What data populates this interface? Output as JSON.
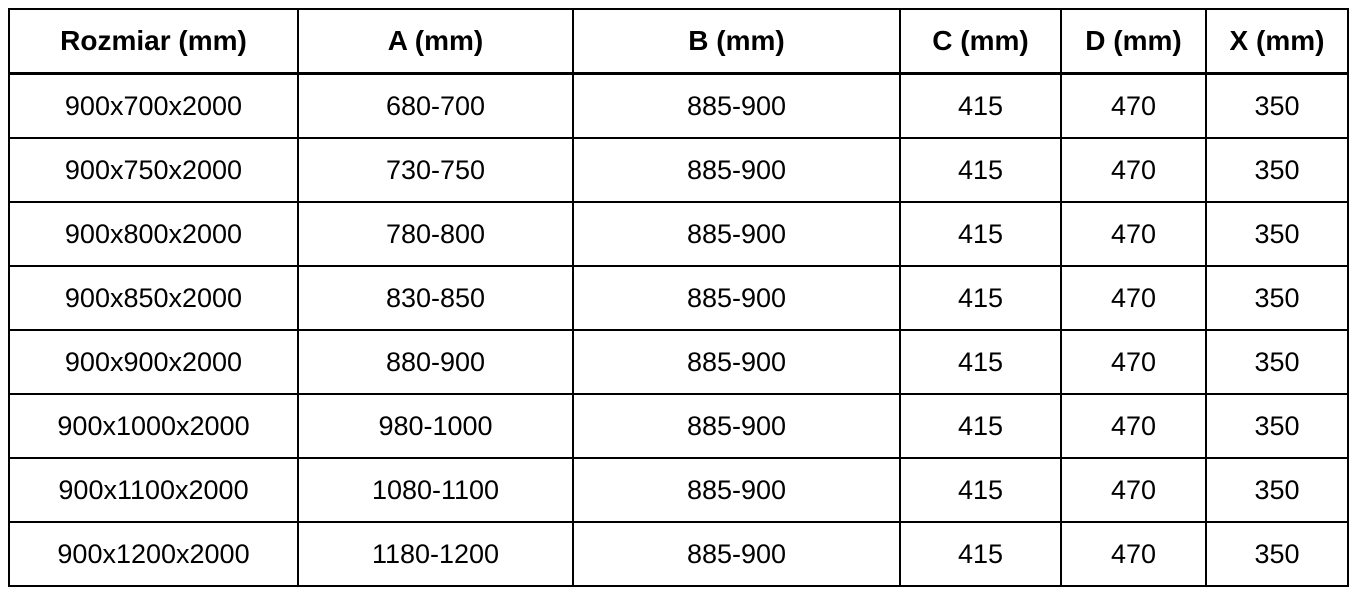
{
  "page": {
    "background": "#ffffff",
    "border_color": "#000000",
    "text_color": "#000000"
  },
  "table": {
    "columns": [
      "Rozmiar (mm)",
      "A (mm)",
      "B (mm)",
      "C (mm)",
      "D (mm)",
      "X (mm)"
    ],
    "rows": [
      [
        "900x700x2000",
        "680-700",
        "885-900",
        "415",
        "470",
        "350"
      ],
      [
        "900x750x2000",
        "730-750",
        "885-900",
        "415",
        "470",
        "350"
      ],
      [
        "900x800x2000",
        "780-800",
        "885-900",
        "415",
        "470",
        "350"
      ],
      [
        "900x850x2000",
        "830-850",
        "885-900",
        "415",
        "470",
        "350"
      ],
      [
        "900x900x2000",
        "880-900",
        "885-900",
        "415",
        "470",
        "350"
      ],
      [
        "900x1000x2000",
        "980-1000",
        "885-900",
        "415",
        "470",
        "350"
      ],
      [
        "900x1100x2000",
        "1080-1100",
        "885-900",
        "415",
        "470",
        "350"
      ],
      [
        "900x1200x2000",
        "1180-1200",
        "885-900",
        "415",
        "470",
        "350"
      ]
    ]
  },
  "chart_data": {
    "type": "table",
    "title": "",
    "columns": [
      "Rozmiar (mm)",
      "A (mm)",
      "B (mm)",
      "C (mm)",
      "D (mm)",
      "X (mm)"
    ],
    "rows": [
      [
        "900x700x2000",
        "680-700",
        "885-900",
        "415",
        "470",
        "350"
      ],
      [
        "900x750x2000",
        "730-750",
        "885-900",
        "415",
        "470",
        "350"
      ],
      [
        "900x800x2000",
        "780-800",
        "885-900",
        "415",
        "470",
        "350"
      ],
      [
        "900x850x2000",
        "830-850",
        "885-900",
        "415",
        "470",
        "350"
      ],
      [
        "900x900x2000",
        "880-900",
        "885-900",
        "415",
        "470",
        "350"
      ],
      [
        "900x1000x2000",
        "980-1000",
        "885-900",
        "415",
        "470",
        "350"
      ],
      [
        "900x1100x2000",
        "1080-1100",
        "885-900",
        "415",
        "470",
        "350"
      ],
      [
        "900x1200x2000",
        "1180-1200",
        "885-900",
        "415",
        "470",
        "350"
      ]
    ]
  }
}
